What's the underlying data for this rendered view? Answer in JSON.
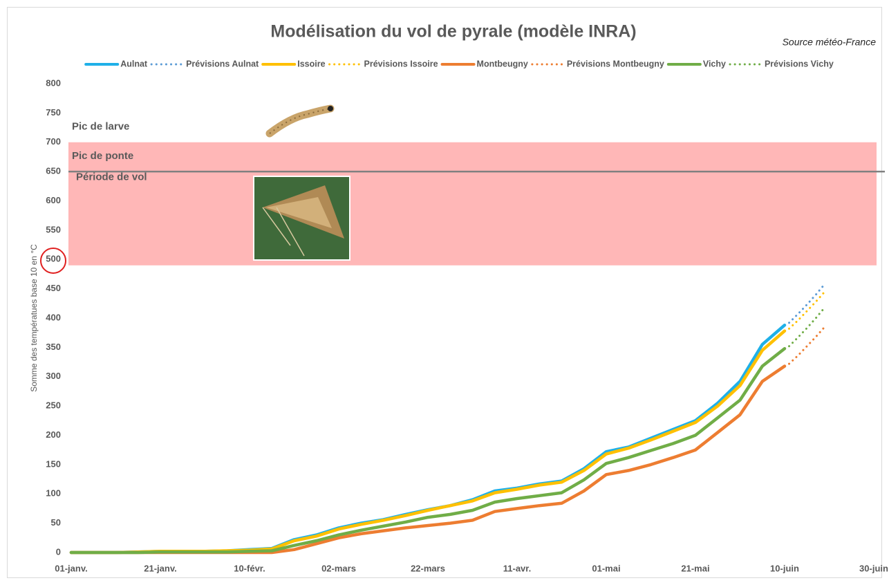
{
  "chart_data": {
    "type": "line",
    "title": "Modélisation du vol de pyrale (modèle INRA)",
    "subtitle": "Source météo-France",
    "y_label": "Somme des températues base 10 en °C",
    "xlim": [
      0,
      180
    ],
    "xticks": [
      {
        "value": 0,
        "label": "01-janv."
      },
      {
        "value": 20,
        "label": "21-janv."
      },
      {
        "value": 40,
        "label": "10-févr."
      },
      {
        "value": 60,
        "label": "02-mars"
      },
      {
        "value": 80,
        "label": "22-mars"
      },
      {
        "value": 100,
        "label": "11-avr."
      },
      {
        "value": 120,
        "label": "01-mai"
      },
      {
        "value": 140,
        "label": "21-mai"
      },
      {
        "value": 160,
        "label": "10-juin"
      },
      {
        "value": 180,
        "label": "30-juin"
      }
    ],
    "ylim": [
      0,
      800
    ],
    "yticks": [
      0,
      50,
      100,
      150,
      200,
      250,
      300,
      350,
      400,
      450,
      500,
      550,
      600,
      650,
      700,
      750,
      800
    ],
    "band": {
      "from": 490,
      "to": 700,
      "color": "#ffb7b7",
      "label": "Période de vol",
      "label_color": "#ff0000"
    },
    "markers": [
      {
        "label": "Pic de larve",
        "value": 700,
        "color": "#c00000"
      },
      {
        "label": "Pic de ponte",
        "value": 650,
        "color": "#4f6228",
        "line_color": "#808080"
      }
    ],
    "series": [
      {
        "name": "Aulnat",
        "color": "#1fb0e8",
        "style": "solid",
        "x": [
          0,
          5,
          10,
          15,
          20,
          25,
          30,
          35,
          40,
          45,
          50,
          55,
          60,
          65,
          70,
          75,
          80,
          85,
          90,
          95,
          100,
          105,
          110,
          115,
          120,
          125,
          130,
          135,
          140,
          145,
          150,
          155,
          160
        ],
        "values": [
          0,
          0,
          0,
          1,
          2,
          2,
          2,
          3,
          5,
          7,
          22,
          30,
          42,
          50,
          56,
          65,
          73,
          80,
          90,
          105,
          110,
          117,
          122,
          143,
          172,
          180,
          195,
          210,
          225,
          255,
          292,
          355,
          388
        ]
      },
      {
        "name": "Prévisions Aulnat",
        "color": "#5b9bd5",
        "style": "dotted",
        "x": [
          161,
          163,
          165,
          167,
          169
        ],
        "values": [
          392,
          407,
          423,
          440,
          458
        ]
      },
      {
        "name": "Issoire",
        "color": "#ffc000",
        "style": "solid",
        "x": [
          0,
          5,
          10,
          15,
          20,
          25,
          30,
          35,
          40,
          45,
          50,
          55,
          60,
          65,
          70,
          75,
          80,
          85,
          90,
          95,
          100,
          105,
          110,
          115,
          120,
          125,
          130,
          135,
          140,
          145,
          150,
          155,
          160
        ],
        "values": [
          0,
          0,
          0,
          1,
          2,
          2,
          2,
          3,
          4,
          6,
          20,
          28,
          40,
          48,
          55,
          63,
          72,
          80,
          88,
          102,
          108,
          115,
          120,
          140,
          168,
          178,
          192,
          207,
          222,
          250,
          285,
          345,
          378
        ]
      },
      {
        "name": "Prévisions Issoire",
        "color": "#ffc000",
        "style": "dotted",
        "x": [
          161,
          163,
          165,
          167,
          169
        ],
        "values": [
          382,
          396,
          412,
          428,
          445
        ]
      },
      {
        "name": "Montbeugny",
        "color": "#ed7d31",
        "style": "solid",
        "x": [
          0,
          5,
          10,
          15,
          20,
          25,
          30,
          35,
          40,
          45,
          50,
          55,
          60,
          65,
          70,
          75,
          80,
          85,
          90,
          95,
          100,
          105,
          110,
          115,
          120,
          125,
          130,
          135,
          140,
          145,
          150,
          155,
          160
        ],
        "values": [
          0,
          0,
          0,
          0,
          0,
          0,
          0,
          0,
          0,
          0,
          5,
          15,
          25,
          32,
          37,
          42,
          46,
          50,
          55,
          70,
          75,
          80,
          84,
          105,
          133,
          140,
          150,
          162,
          175,
          205,
          235,
          292,
          318
        ]
      },
      {
        "name": "Prévisions Montbeugny",
        "color": "#ed7d31",
        "style": "dotted",
        "x": [
          161,
          163,
          165,
          167,
          169
        ],
        "values": [
          322,
          336,
          352,
          368,
          385
        ]
      },
      {
        "name": "Vichy",
        "color": "#70ad47",
        "style": "solid",
        "x": [
          0,
          5,
          10,
          15,
          20,
          25,
          30,
          35,
          40,
          45,
          50,
          55,
          60,
          65,
          70,
          75,
          80,
          85,
          90,
          95,
          100,
          105,
          110,
          115,
          120,
          125,
          130,
          135,
          140,
          145,
          150,
          155,
          160
        ],
        "values": [
          0,
          0,
          0,
          0,
          1,
          1,
          1,
          1,
          2,
          3,
          12,
          20,
          30,
          38,
          45,
          52,
          60,
          65,
          72,
          86,
          92,
          97,
          102,
          124,
          152,
          162,
          174,
          186,
          200,
          230,
          260,
          318,
          348
        ]
      },
      {
        "name": "Prévisions Vichy",
        "color": "#70ad47",
        "style": "dotted",
        "x": [
          161,
          163,
          165,
          167,
          169
        ],
        "values": [
          352,
          367,
          383,
          400,
          418
        ]
      }
    ]
  }
}
